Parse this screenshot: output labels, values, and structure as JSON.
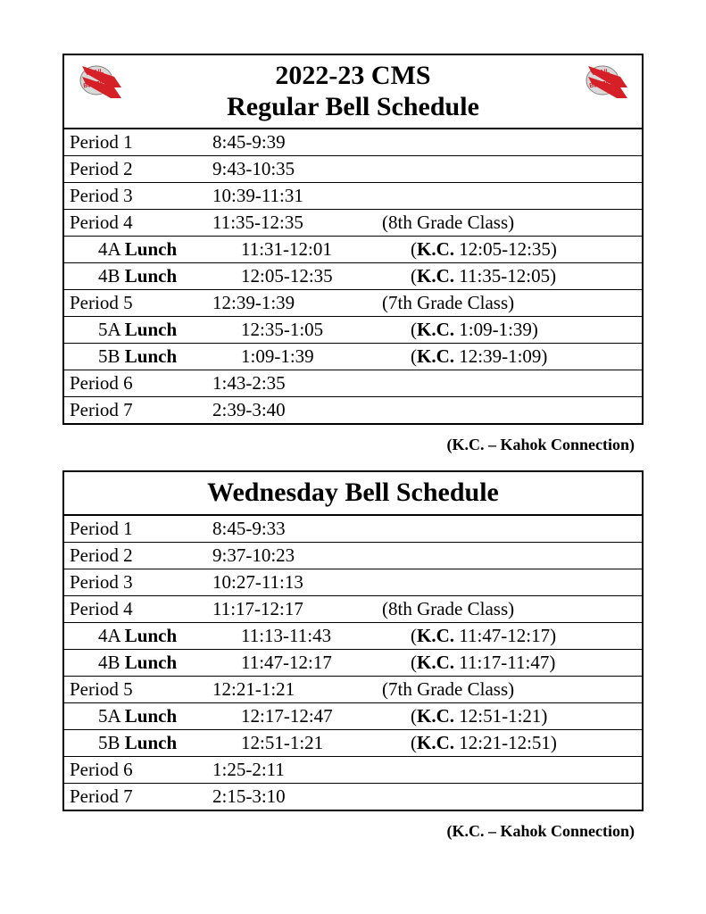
{
  "footnote": "(K.C. – Kahok Connection)",
  "schedules": [
    {
      "title_line1": "2022-23 CMS",
      "title_line2": "Regular Bell Schedule",
      "show_logos": true,
      "rows": [
        {
          "period": "Period 1",
          "indent": false,
          "lunch": false,
          "time": "8:45-9:39",
          "note_plain": ""
        },
        {
          "period": "Period 2",
          "indent": false,
          "lunch": false,
          "time": "9:43-10:35",
          "note_plain": ""
        },
        {
          "period": "Period 3",
          "indent": false,
          "lunch": false,
          "time": "10:39-11:31",
          "note_plain": ""
        },
        {
          "period": "Period 4",
          "indent": false,
          "lunch": false,
          "time": "11:35-12:35",
          "note_plain": "(8th Grade Class)"
        },
        {
          "period_prefix": "4A ",
          "lunch_word": "Lunch",
          "indent": true,
          "lunch": true,
          "time": "11:31-12:01",
          "note_kc_bold": "K.C.",
          "note_kc_rest": " 12:05-12:35)"
        },
        {
          "period_prefix": "4B ",
          "lunch_word": "Lunch",
          "indent": true,
          "lunch": true,
          "time": "12:05-12:35",
          "note_kc_bold": "K.C.",
          "note_kc_rest": " 11:35-12:05)"
        },
        {
          "period": "Period 5",
          "indent": false,
          "lunch": false,
          "time": "12:39-1:39",
          "note_plain": "(7th Grade Class)"
        },
        {
          "period_prefix": "5A ",
          "lunch_word": "Lunch",
          "indent": true,
          "lunch": true,
          "time": "12:35-1:05",
          "note_kc_bold": "K.C.",
          "note_kc_rest": " 1:09-1:39)"
        },
        {
          "period_prefix": "5B ",
          "lunch_word": "Lunch",
          "indent": true,
          "lunch": true,
          "time": "1:09-1:39",
          "note_kc_bold": "K.C.",
          "note_kc_rest": " 12:39-1:09)"
        },
        {
          "period": "Period 6",
          "indent": false,
          "lunch": false,
          "time": "1:43-2:35",
          "note_plain": ""
        },
        {
          "period": "Period 7",
          "indent": false,
          "lunch": false,
          "time": "2:39-3:40",
          "note_plain": ""
        }
      ]
    },
    {
      "title_line1": "",
      "title_line2": "Wednesday Bell Schedule",
      "show_logos": false,
      "rows": [
        {
          "period": "Period 1",
          "indent": false,
          "lunch": false,
          "time": "8:45-9:33",
          "note_plain": ""
        },
        {
          "period": "Period 2",
          "indent": false,
          "lunch": false,
          "time": "9:37-10:23",
          "note_plain": ""
        },
        {
          "period": "Period 3",
          "indent": false,
          "lunch": false,
          "time": "10:27-11:13",
          "note_plain": ""
        },
        {
          "period": "Period 4",
          "indent": false,
          "lunch": false,
          "time": "11:17-12:17",
          "note_plain": "(8th Grade Class)"
        },
        {
          "period_prefix": "4A ",
          "lunch_word": "Lunch",
          "indent": true,
          "lunch": true,
          "time": "11:13-11:43",
          "note_kc_bold": "K.C.",
          "note_kc_rest": " 11:47-12:17)"
        },
        {
          "period_prefix": "4B ",
          "lunch_word": "Lunch",
          "indent": true,
          "lunch": true,
          "time": "11:47-12:17",
          "note_kc_bold": "K.C.",
          "note_kc_rest": " 11:17-11:47)"
        },
        {
          "period": "Period 5",
          "indent": false,
          "lunch": false,
          "time": "12:21-1:21",
          "note_plain": "(7th Grade Class)"
        },
        {
          "period_prefix": "5A ",
          "lunch_word": "Lunch",
          "indent": true,
          "lunch": true,
          "time": "12:17-12:47",
          "note_kc_bold": "K.C.",
          "note_kc_rest": " 12:51-1:21)"
        },
        {
          "period_prefix": "5B ",
          "lunch_word": "Lunch",
          "indent": true,
          "lunch": true,
          "time": "12:51-1:21",
          "note_kc_bold": "K.C.",
          "note_kc_rest": " 12:21-12:51)"
        },
        {
          "period": "Period 6",
          "indent": false,
          "lunch": false,
          "time": "1:25-2:11",
          "note_plain": ""
        },
        {
          "period": "Period 7",
          "indent": false,
          "lunch": false,
          "time": "2:15-3:10",
          "note_plain": ""
        }
      ]
    }
  ]
}
